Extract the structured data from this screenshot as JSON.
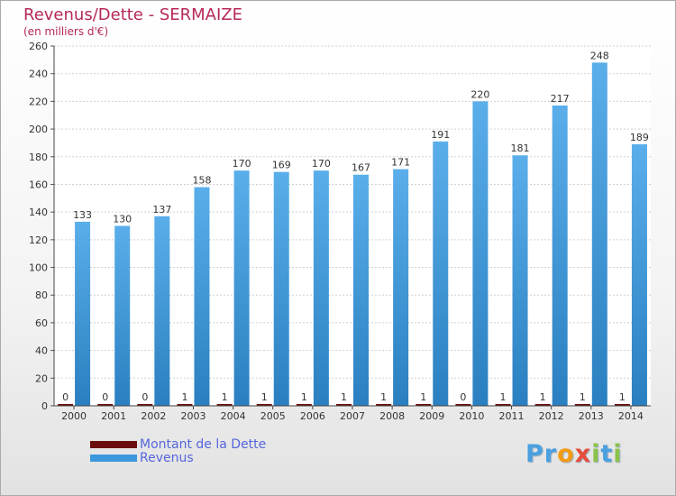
{
  "title": "Revenus/Dette - SERMAIZE",
  "subtitle": "(en milliers d'€)",
  "logo": {
    "letters": [
      "P",
      "r",
      "o",
      "x",
      "i",
      "t",
      "i"
    ],
    "colors": [
      "#4aa0e0",
      "#4aa0e0",
      "#f39c12",
      "#e74c3c",
      "#8bc34a",
      "#4aa0e0",
      "#8bc34a"
    ]
  },
  "chart_data": {
    "type": "bar",
    "categories": [
      "2000",
      "2001",
      "2002",
      "2003",
      "2004",
      "2005",
      "2006",
      "2007",
      "2008",
      "2009",
      "2010",
      "2011",
      "2012",
      "2013",
      "2014"
    ],
    "series": [
      {
        "name": "Montant de la Dette",
        "color": "#6b0d0d",
        "values": [
          0,
          0,
          0,
          1,
          1,
          1,
          1,
          1,
          1,
          1,
          0,
          1,
          1,
          1,
          1
        ]
      },
      {
        "name": "Revenus",
        "color": "#3d97dd",
        "values": [
          133,
          130,
          137,
          158,
          170,
          169,
          170,
          167,
          171,
          191,
          220,
          181,
          217,
          248,
          189
        ]
      }
    ],
    "ylim": [
      0,
      260
    ],
    "yticks": [
      0,
      20,
      40,
      60,
      80,
      100,
      120,
      140,
      160,
      180,
      200,
      220,
      240,
      260
    ],
    "grid": true,
    "legend": "bottom-left"
  }
}
